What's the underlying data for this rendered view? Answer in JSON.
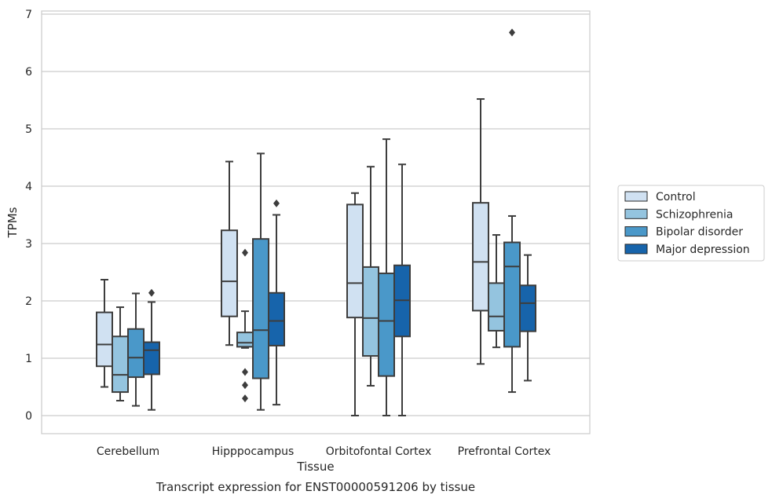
{
  "chart_data": {
    "type": "box",
    "title": "",
    "xlabel": "Tissue",
    "ylabel": "TPMs",
    "caption": "Transcript expression for ENST00000591206 by tissue",
    "ylim": [
      -0.3,
      7
    ],
    "yticks": [
      0,
      1,
      2,
      3,
      4,
      5,
      6,
      7
    ],
    "grid": "horizontal",
    "legend_position": "right",
    "categories": [
      "Cerebellum",
      "Hipppocampus",
      "Orbitofontal Cortex",
      "Prefrontal Cortex"
    ],
    "series": [
      {
        "name": "Control",
        "color": "#d0e1f2",
        "boxes": [
          {
            "whislo": 0.5,
            "q1": 0.86,
            "med": 1.24,
            "q3": 1.8,
            "whishi": 2.37,
            "fliers": []
          },
          {
            "whislo": 1.23,
            "q1": 1.73,
            "med": 2.34,
            "q3": 3.23,
            "whishi": 4.43,
            "fliers": []
          },
          {
            "whislo": 0.0,
            "q1": 1.71,
            "med": 2.31,
            "q3": 3.68,
            "whishi": 3.88,
            "fliers": []
          },
          {
            "whislo": 0.9,
            "q1": 1.83,
            "med": 2.68,
            "q3": 3.71,
            "whishi": 5.52,
            "fliers": []
          }
        ]
      },
      {
        "name": "Schizophrenia",
        "color": "#94c4df",
        "boxes": [
          {
            "whislo": 0.26,
            "q1": 0.41,
            "med": 0.71,
            "q3": 1.38,
            "whishi": 1.89,
            "fliers": []
          },
          {
            "whislo": 1.18,
            "q1": 1.2,
            "med": 1.27,
            "q3": 1.45,
            "whishi": 1.82,
            "fliers": [
              2.84,
              0.76,
              0.53,
              0.3
            ]
          },
          {
            "whislo": 0.52,
            "q1": 1.04,
            "med": 1.7,
            "q3": 2.59,
            "whishi": 4.34,
            "fliers": []
          },
          {
            "whislo": 1.19,
            "q1": 1.48,
            "med": 1.73,
            "q3": 2.31,
            "whishi": 3.15,
            "fliers": []
          }
        ]
      },
      {
        "name": "Bipolar disorder",
        "color": "#4a98c9",
        "boxes": [
          {
            "whislo": 0.17,
            "q1": 0.67,
            "med": 1.01,
            "q3": 1.51,
            "whishi": 2.13,
            "fliers": []
          },
          {
            "whislo": 0.1,
            "q1": 0.65,
            "med": 1.49,
            "q3": 3.08,
            "whishi": 4.57,
            "fliers": []
          },
          {
            "whislo": 0.0,
            "q1": 0.69,
            "med": 1.65,
            "q3": 2.48,
            "whishi": 4.82,
            "fliers": []
          },
          {
            "whislo": 0.41,
            "q1": 1.2,
            "med": 2.6,
            "q3": 3.02,
            "whishi": 3.48,
            "fliers": [
              6.68
            ]
          }
        ]
      },
      {
        "name": "Major depression",
        "color": "#1764ab",
        "boxes": [
          {
            "whislo": 0.1,
            "q1": 0.72,
            "med": 1.14,
            "q3": 1.28,
            "whishi": 1.98,
            "fliers": [
              2.14
            ]
          },
          {
            "whislo": 0.19,
            "q1": 1.22,
            "med": 1.65,
            "q3": 2.14,
            "whishi": 3.5,
            "fliers": [
              3.7
            ]
          },
          {
            "whislo": 0.0,
            "q1": 1.38,
            "med": 2.01,
            "q3": 2.62,
            "whishi": 4.38,
            "fliers": []
          },
          {
            "whislo": 0.61,
            "q1": 1.47,
            "med": 1.96,
            "q3": 2.27,
            "whishi": 2.8,
            "fliers": []
          }
        ]
      }
    ]
  }
}
